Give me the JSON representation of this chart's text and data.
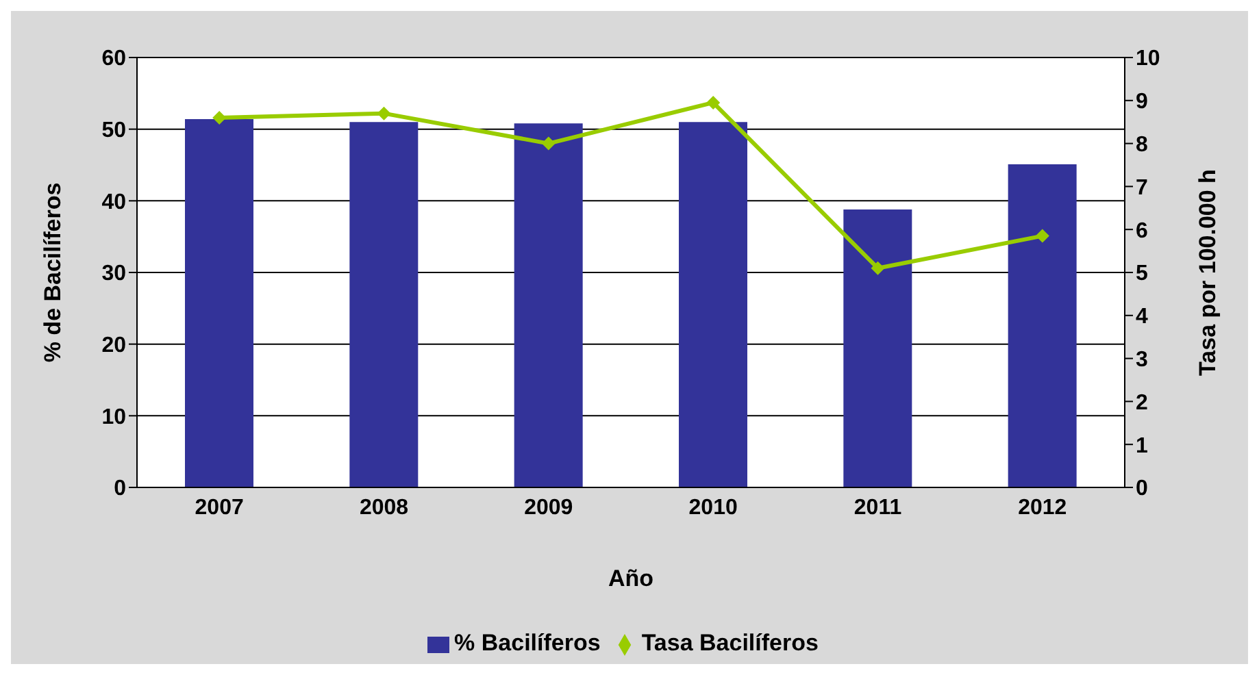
{
  "chart_data": {
    "type": "bar",
    "xlabel": "Año",
    "ylabel": "% de Bacilíferos",
    "y2label": "Tasa por 100.000 h",
    "categories": [
      "2007",
      "2008",
      "2009",
      "2010",
      "2011",
      "2012"
    ],
    "series": [
      {
        "name": "% Bacilíferos",
        "color": "#333399",
        "values": [
          51.4,
          51,
          50.8,
          51,
          38.8,
          45.1
        ]
      },
      {
        "name": "Tasa Bacilíferos",
        "type": "line",
        "axis": "y2",
        "color": "#99cc00",
        "marker": "diamond",
        "values": [
          8.6,
          8.7,
          8.0,
          8.95,
          5.1,
          5.85
        ]
      }
    ],
    "ylim": [
      0,
      60
    ],
    "yticks": [
      0,
      10,
      20,
      30,
      40,
      50,
      60
    ],
    "y2lim": [
      0,
      10
    ],
    "y2ticks": [
      0,
      1,
      2,
      3,
      4,
      5,
      6,
      7,
      8,
      9,
      10
    ],
    "grid": "y",
    "legend": "bottom"
  }
}
